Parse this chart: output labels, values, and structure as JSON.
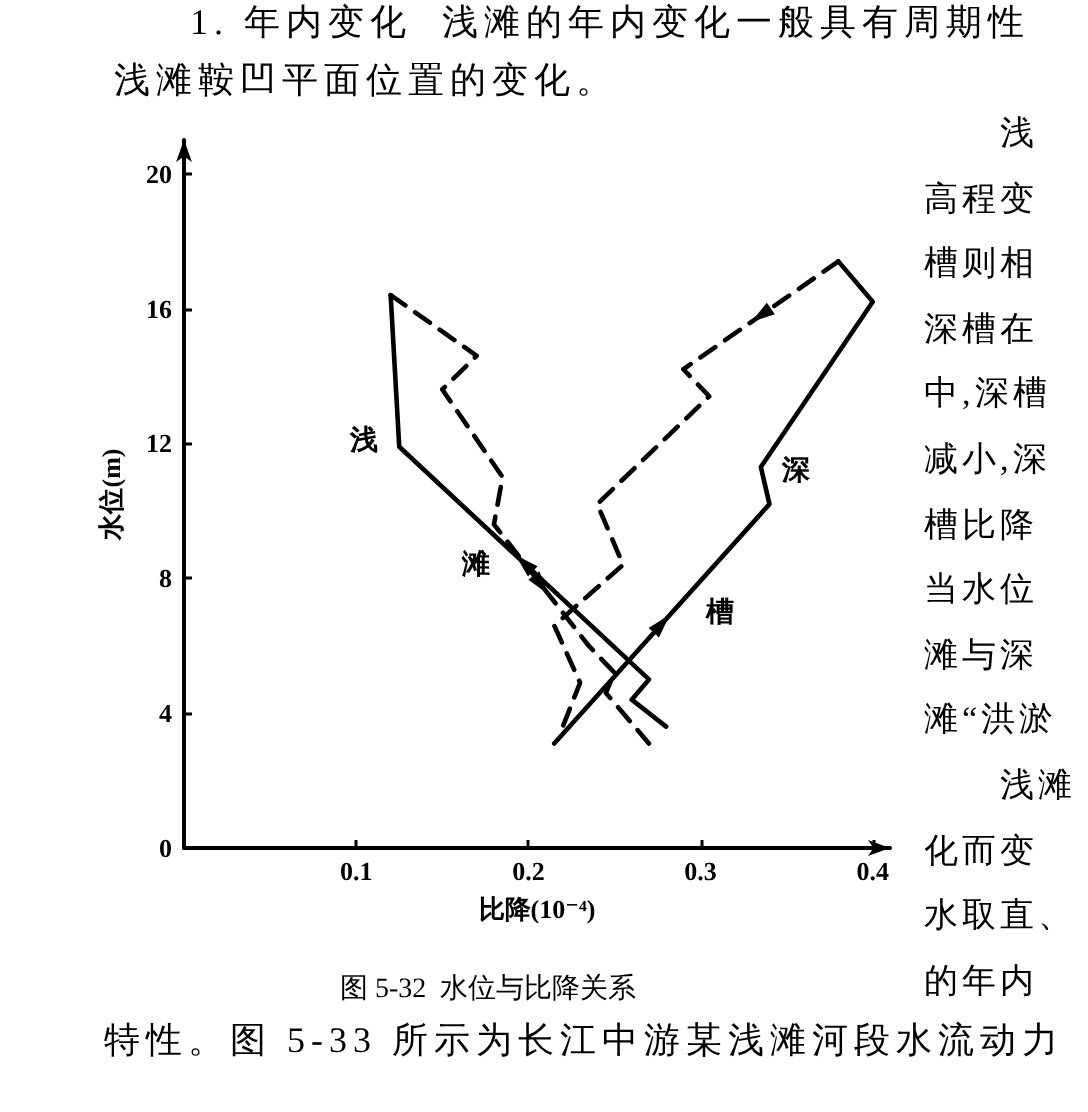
{
  "chart_data": {
    "type": "line",
    "title": "图 5-32  水位与比降关系",
    "xlabel": "比降(10⁻⁴)",
    "ylabel": "水位(m)",
    "xlim": [
      0,
      0.41
    ],
    "xticks": [
      0.1,
      0.2,
      0.3,
      0.4
    ],
    "ylim": [
      0,
      21
    ],
    "yticks": [
      0,
      4,
      8,
      12,
      16,
      20
    ],
    "marker": "none",
    "series": [
      {
        "color": "#000000",
        "line_style": "solid",
        "x": [
          0.28,
          0.26,
          0.27,
          0.125,
          0.12
        ],
        "values": [
          3.6,
          4.4,
          5.0,
          11.9,
          16.4
        ]
      },
      {
        "color": "#000000",
        "line_style": "dashed",
        "x": [
          0.12,
          0.17,
          0.15,
          0.185,
          0.18,
          0.235,
          0.25,
          0.245,
          0.27
        ],
        "values": [
          16.4,
          14.6,
          13.6,
          11.0,
          9.6,
          6.0,
          5.2,
          4.6,
          3.1
        ]
      },
      {
        "color": "#000000",
        "line_style": "solid",
        "x": [
          0.215,
          0.34,
          0.335,
          0.4,
          0.38
        ],
        "values": [
          3.1,
          10.2,
          11.3,
          16.2,
          17.4
        ]
      },
      {
        "color": "#000000",
        "line_style": "dashed",
        "x": [
          0.38,
          0.29,
          0.305,
          0.24,
          0.255,
          0.215,
          0.23,
          0.22
        ],
        "values": [
          17.4,
          14.2,
          13.4,
          10.2,
          8.4,
          6.6,
          4.9,
          3.6
        ]
      }
    ],
    "annotations": [
      "浅",
      "滩",
      "深",
      "槽",
      "1. 年内变化  浅滩的年内变化一般具有周期性",
      "浅滩鞍凹平面位置的变化。",
      "浅",
      "高程变",
      "槽则相",
      "深槽在",
      "中,深槽",
      "减小,深",
      "槽比降",
      "当水位",
      "滩与深",
      "滩“洪淤",
      "浅滩",
      "化而变",
      "水取直、",
      "的年内",
      "特性。图 5-33 所示为长江中游某浅滩河段水流动力"
    ]
  }
}
